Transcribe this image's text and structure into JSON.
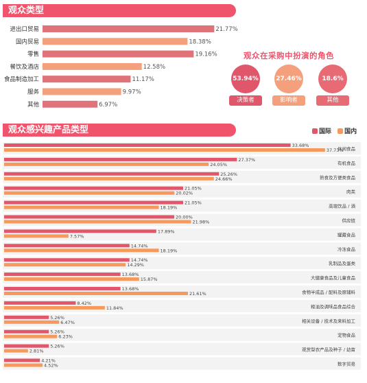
{
  "section1": {
    "title": "观众类型"
  },
  "section2": {
    "title": "观众感兴趣产品类型"
  },
  "roles": {
    "title": "观众在采购中扮演的角色",
    "items": [
      {
        "value": "53.94%",
        "label": "决策者",
        "color": "#e0566a"
      },
      {
        "value": "27.46%",
        "label": "影响者",
        "color": "#f4a07c"
      },
      {
        "value": "18.6%",
        "label": "其他",
        "color": "#e86a74"
      }
    ]
  },
  "legend": {
    "intl": "国际",
    "domestic": "国内"
  },
  "colors": {
    "banner": "#f0546c",
    "pink_bar": "#e0737a",
    "orange_bar": "#f4a07c",
    "intl": "#e0566a",
    "domestic": "#f59a5c"
  },
  "chart_data": [
    {
      "type": "bar",
      "orientation": "horizontal",
      "categories": [
        "进出口贸易",
        "国内贸易",
        "零售",
        "餐饮及酒店",
        "食品制造加工",
        "服务",
        "其他"
      ],
      "values": [
        21.77,
        18.38,
        19.16,
        12.58,
        11.17,
        9.97,
        6.97
      ],
      "value_labels": [
        "21.77%",
        "18.38%",
        "19.16%",
        "12.58%",
        "11.17%",
        "9.97%",
        "6.97%"
      ],
      "bar_colors": [
        "pink",
        "orange",
        "pink",
        "orange",
        "pink",
        "orange",
        "pink"
      ]
    },
    {
      "type": "bar",
      "orientation": "horizontal",
      "categories": [
        "休闲食品",
        "有机食品",
        "熟食及方便类食品",
        "肉类",
        "高端饮品 / 酒",
        "供应链",
        "罐藏食品",
        "冷冻食品",
        "乳制品及蛋类",
        "大健康食品及儿童食品",
        "食物半成品 / 配料及原辅料",
        "粮油及调味品食品综合",
        "相关设备 / 技术及来料加工",
        "宠物食品",
        "观赏型农产品及种子 / 幼苗",
        "数字贸易"
      ],
      "series": [
        {
          "name": "国际",
          "values": [
            33.68,
            27.37,
            25.26,
            21.05,
            21.05,
            20.0,
            17.89,
            14.74,
            14.74,
            13.68,
            13.68,
            8.42,
            5.26,
            5.26,
            5.26,
            4.21
          ],
          "labels": [
            "33.68%",
            "27.37%",
            "25.26%",
            "21.05%",
            "21.05%",
            "20.00%",
            "17.89%",
            "14.74%",
            "14.74%",
            "13.68%",
            "13.68%",
            "8.42%",
            "5.26%",
            "5.26%",
            "5.26%",
            "4.21%"
          ]
        },
        {
          "name": "国内",
          "values": [
            37.73,
            24.05,
            24.66,
            20.02,
            18.19,
            21.98,
            7.57,
            18.19,
            14.29,
            15.87,
            21.61,
            11.84,
            6.47,
            6.23,
            2.81,
            4.52
          ],
          "labels": [
            "37.73%",
            "24.05%",
            "24.66%",
            "20.02%",
            "18.19%",
            "21.98%",
            "7.57%",
            "18.19%",
            "14.29%",
            "15.87%",
            "21.61%",
            "11.84%",
            "6.47%",
            "6.23%",
            "2.81%",
            "4.52%"
          ]
        }
      ]
    }
  ]
}
